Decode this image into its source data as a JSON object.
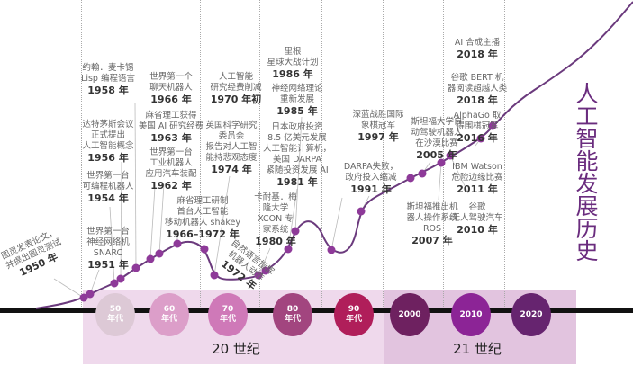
{
  "title": "人工智能发展历史",
  "colors": {
    "curve": "#6b3a7d",
    "dot": "#8e3a99",
    "title": "#6a2c7e",
    "band20": "#efd9ec",
    "band21": "#e2c4df"
  },
  "events": [
    {
      "lines": [
        "图灵发表论文，",
        "并提出图灵测试"
      ],
      "year": "1950 年"
    },
    {
      "lines": [
        "世界第一台",
        "神经网络机",
        "SNARC"
      ],
      "year": "1951 年"
    },
    {
      "lines": [
        "世界第一台",
        "可编程机器人"
      ],
      "year": "1954 年"
    },
    {
      "lines": [
        "达特茅斯会议",
        "正式提出",
        "人工智能概念"
      ],
      "year": "1956 年"
    },
    {
      "lines": [
        "约翰．麦卡锡",
        "Lisp 编程语言"
      ],
      "year": "1958 年"
    },
    {
      "lines": [
        "世界第一个",
        "聊天机器人"
      ],
      "year": "1966 年"
    },
    {
      "lines": [
        "麻省理工获得",
        "美国 AI 研究经费"
      ],
      "year": "1963 年"
    },
    {
      "lines": [
        "世界第一台",
        "工业机器人",
        "应用汽车装配"
      ],
      "year": "1962 年"
    },
    {
      "lines": [
        "麻省理工研制",
        "首台人工智能",
        "移动机器人 shakey"
      ],
      "year": "1966–1972 年"
    },
    {
      "lines": [
        "人工智能",
        "研究经费削减"
      ],
      "year": "1970 年初"
    },
    {
      "lines": [
        "英国科学研究",
        "委员会",
        "报告对人工智",
        "能持悲观态度"
      ],
      "year": "1974 年"
    },
    {
      "lines": [
        "自然语言指挥",
        "机器人动作"
      ],
      "year": "1972 年"
    },
    {
      "lines": [
        "里根",
        "星球大战计划"
      ],
      "year": "1986 年"
    },
    {
      "lines": [
        "神经网络理论",
        "重新发展"
      ],
      "year": "1985 年"
    },
    {
      "lines": [
        "日本政府投资",
        "8.5 亿美元发展",
        "人工智能计算机，",
        "美国 DARPA",
        "紧随投资发展 AI"
      ],
      "year": "1981 年"
    },
    {
      "lines": [
        "卡耐基．梅",
        "隆大学",
        "XCON 专",
        "家系统"
      ],
      "year": "1980 年"
    },
    {
      "lines": [
        "深蓝战胜国际",
        "象棋冠军"
      ],
      "year": "1997 年"
    },
    {
      "lines": [
        "DARPA失败，",
        "政府投入缩减"
      ],
      "year": "1991 年"
    },
    {
      "lines": [
        "斯坦福大学自",
        "动驾驶机器人",
        "在沙漠比赛"
      ],
      "year": "2005 年"
    },
    {
      "lines": [
        "斯坦福推出机",
        "器人操作系统",
        "ROS"
      ],
      "year": "2007 年"
    },
    {
      "lines": [
        "AI 合成主播"
      ],
      "year": "2018 年"
    },
    {
      "lines": [
        "谷歌 BERT 机",
        "器阅读超越人类"
      ],
      "year": "2018 年"
    },
    {
      "lines": [
        "AlphaGo 取",
        "得围棋冠军"
      ],
      "year": "2016 年"
    },
    {
      "lines": [
        "IBM Watson",
        "危险边缘比赛"
      ],
      "year": "2011 年"
    },
    {
      "lines": [
        "谷歌",
        "无人驾驶汽车"
      ],
      "year": "2010 年"
    }
  ],
  "decades": [
    {
      "label": [
        "50",
        "年代"
      ],
      "color": "#ddc9d6"
    },
    {
      "label": [
        "60",
        "年代"
      ],
      "color": "#dc9ec9"
    },
    {
      "label": [
        "70",
        "年代"
      ],
      "color": "#cf79b8"
    },
    {
      "label": [
        "80",
        "年代"
      ],
      "color": "#a2457f"
    },
    {
      "label": [
        "90",
        "年代"
      ],
      "color": "#b01e5a"
    },
    {
      "label": [
        "2000"
      ],
      "color": "#6e2160"
    },
    {
      "label": [
        "2010"
      ],
      "color": "#8c2496"
    },
    {
      "label": [
        "2020"
      ],
      "color": "#66246f"
    }
  ],
  "centuries": [
    "20 世纪",
    "21 世纪"
  ]
}
